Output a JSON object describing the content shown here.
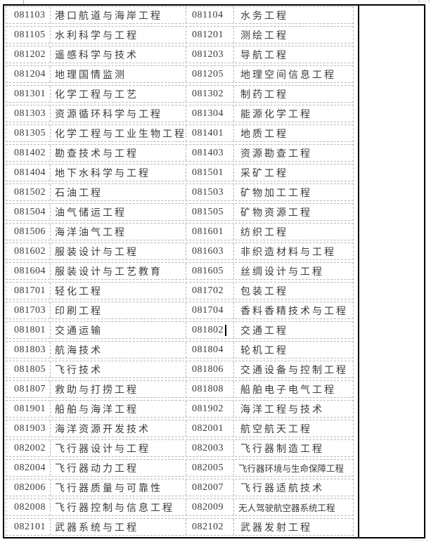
{
  "colors": {
    "background": "#ffffff",
    "border": "#000000",
    "gridline": "#b8b8b8",
    "ink": "#3b3b3b"
  },
  "cursor": {
    "row_index": 16,
    "cell": "code2",
    "after_text": "081802"
  },
  "table": {
    "columns": [
      "code1",
      "name1",
      "code2",
      "name2"
    ],
    "rows": [
      {
        "code1": "081103",
        "name1": "港口航道与海岸工程",
        "code2": "081104",
        "name2": "水务工程"
      },
      {
        "code1": "081105",
        "name1": "水利科学与工程",
        "code2": "081201",
        "name2": "测绘工程"
      },
      {
        "code1": "081202",
        "name1": "遥感科学与技术",
        "code2": "081203",
        "name2": "导航工程"
      },
      {
        "code1": "081204",
        "name1": "地理国情监测",
        "code2": "081205",
        "name2": "地理空间信息工程"
      },
      {
        "code1": "081301",
        "name1": "化学工程与工艺",
        "code2": "081302",
        "name2": "制药工程"
      },
      {
        "code1": "081303",
        "name1": "资源循环科学与工程",
        "code2": "081304",
        "name2": "能源化学工程"
      },
      {
        "code1": "081305",
        "name1": "化学工程与工业生物工程",
        "code2": "081401",
        "name2": "地质工程"
      },
      {
        "code1": "081402",
        "name1": "勘查技术与工程",
        "code2": "081403",
        "name2": "资源勘查工程"
      },
      {
        "code1": "081404",
        "name1": "地下水科学与工程",
        "code2": "081501",
        "name2": "采矿工程"
      },
      {
        "code1": "081502",
        "name1": "石油工程",
        "code2": "081503",
        "name2": "矿物加工工程"
      },
      {
        "code1": "081504",
        "name1": "油气储运工程",
        "code2": "081505",
        "name2": "矿物资源工程"
      },
      {
        "code1": "081506",
        "name1": "海洋油气工程",
        "code2": "081601",
        "name2": "纺织工程"
      },
      {
        "code1": "081602",
        "name1": "服装设计与工程",
        "code2": "081603",
        "name2": "非织造材料与工程"
      },
      {
        "code1": "081604",
        "name1": "服装设计与工艺教育",
        "code2": "081605",
        "name2": "丝绸设计与工程"
      },
      {
        "code1": "081701",
        "name1": "轻化工程",
        "code2": "081702",
        "name2": "包装工程"
      },
      {
        "code1": "081703",
        "name1": "印刷工程",
        "code2": "081704",
        "name2": "香料香精技术与工程"
      },
      {
        "code1": "081801",
        "name1": "交通运输",
        "code2": "081802",
        "name2": "交通工程"
      },
      {
        "code1": "081803",
        "name1": "航海技术",
        "code2": "081804",
        "name2": "轮机工程"
      },
      {
        "code1": "081805",
        "name1": "飞行技术",
        "code2": "081806",
        "name2": "交通设备与控制工程"
      },
      {
        "code1": "081807",
        "name1": "救助与打捞工程",
        "code2": "081808",
        "name2": "船舶电子电气工程"
      },
      {
        "code1": "081901",
        "name1": "船舶与海洋工程",
        "code2": "081902",
        "name2": "海洋工程与技术"
      },
      {
        "code1": "081903",
        "name1": "海洋资源开发技术",
        "code2": "082001",
        "name2": "航空航天工程"
      },
      {
        "code1": "082002",
        "name1": "飞行器设计与工程",
        "code2": "082003",
        "name2": "飞行器制造工程"
      },
      {
        "code1": "082004",
        "name1": "飞行器动力工程",
        "code2": "082005",
        "name2": "飞行器环境与生命保障工程"
      },
      {
        "code1": "082006",
        "name1": "飞行器质量与可靠性",
        "code2": "082007",
        "name2": "飞行器适航技术"
      },
      {
        "code1": "082008",
        "name1": "飞行器控制与信息工程",
        "code2": "082009",
        "name2": "无人驾驶航空器系统工程"
      },
      {
        "code1": "082101",
        "name1": "武器系统与工程",
        "code2": "082102",
        "name2": "武器发射工程"
      }
    ]
  }
}
